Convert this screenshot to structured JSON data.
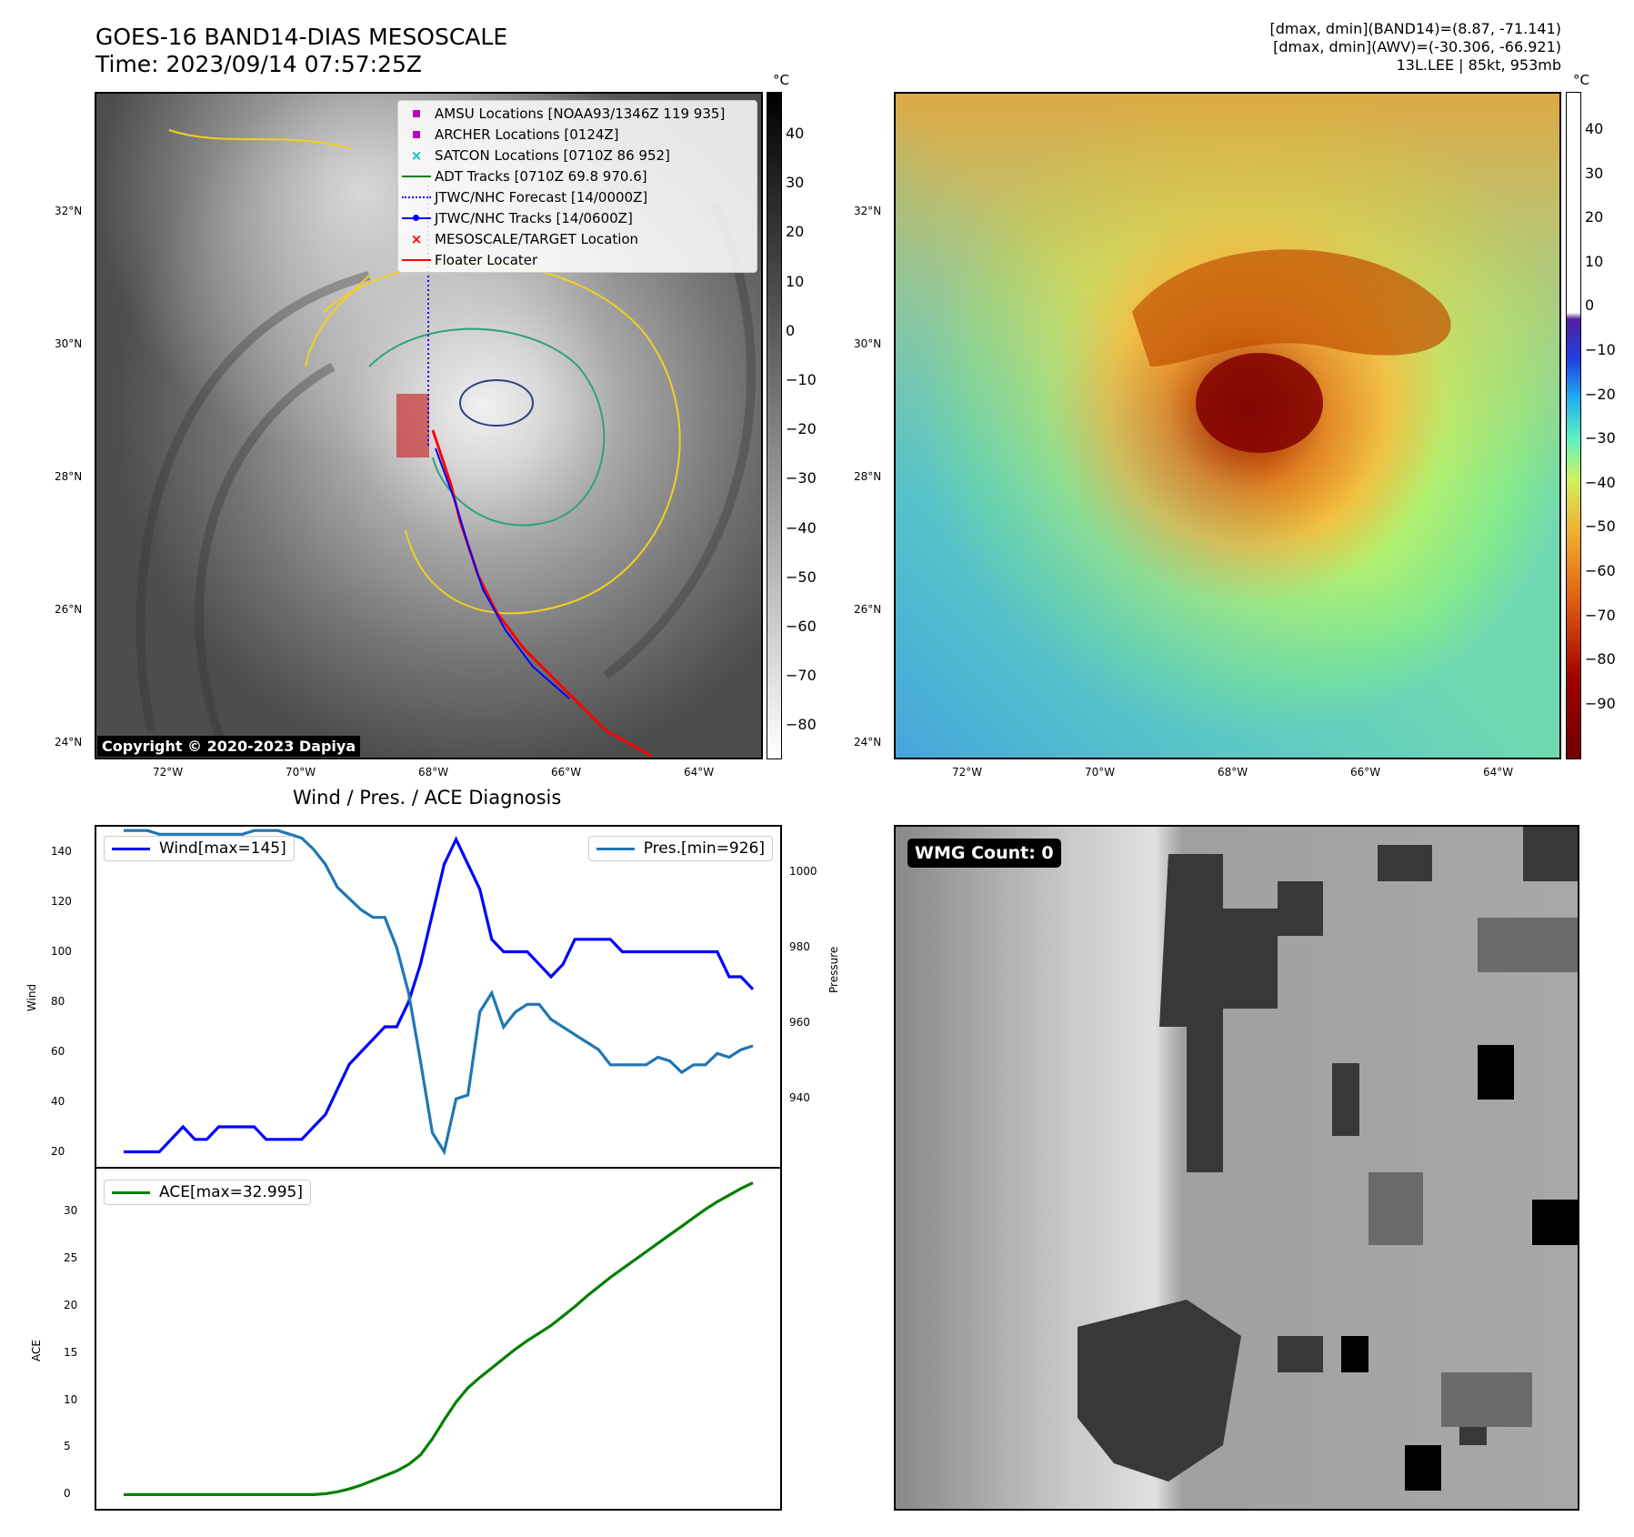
{
  "header": {
    "title_line1": "GOES-16 BAND14-DIAS MESOSCALE",
    "title_line2": "Time: 2023/09/14 07:57:25Z",
    "info_line1": "[dmax, dmin](BAND14)=(8.87, -71.141)",
    "info_line2": "[dmax, dmin](AWV)=(-30.306, -66.921)",
    "info_line3": "13L.LEE | 85kt, 953mb"
  },
  "map_axes": {
    "lat_labels": [
      "32°N",
      "30°N",
      "28°N",
      "26°N",
      "24°N"
    ],
    "lon_labels": [
      "72°W",
      "70°W",
      "68°W",
      "66°W",
      "64°W"
    ]
  },
  "ir_panel": {
    "copyright": "Copyright © 2020-2023 Dapiya",
    "colorbar_unit": "°C",
    "colorbar_ticks": [
      "40",
      "30",
      "20",
      "10",
      "0",
      "−10",
      "−20",
      "−30",
      "−40",
      "−50",
      "−60",
      "−70",
      "−80"
    ],
    "legend": [
      {
        "label": "AMSU Locations [NOAA93/1346Z 119 935]",
        "symbol": "square",
        "color": "#c000c0"
      },
      {
        "label": "ARCHER Locations [0124Z]",
        "symbol": "square",
        "color": "#c000c0"
      },
      {
        "label": "SATCON Locations [0710Z 86 952]",
        "symbol": "x",
        "color": "#00c0c0"
      },
      {
        "label": "ADT Tracks [0710Z 69.8 970.6]",
        "symbol": "line",
        "color": "#008000"
      },
      {
        "label": "JTWC/NHC Forecast [14/0000Z]",
        "symbol": "dotted",
        "color": "#0000ff"
      },
      {
        "label": "JTWC/NHC Tracks [14/0600Z]",
        "symbol": "line-dot",
        "color": "#0000ff"
      },
      {
        "label": "MESOSCALE/TARGET Location",
        "symbol": "x",
        "color": "#ff0000"
      },
      {
        "label": "Floater Locater",
        "symbol": "line",
        "color": "#ff0000"
      }
    ]
  },
  "color_panel": {
    "colorbar_unit": "°C",
    "colorbar_ticks": [
      "40",
      "30",
      "20",
      "10",
      "0",
      "−10",
      "−20",
      "−30",
      "−40",
      "−50",
      "−60",
      "−70",
      "−80",
      "−90"
    ]
  },
  "wmg_panel": {
    "badge": "WMG Count: 0"
  },
  "chart_data": [
    {
      "type": "line",
      "title": "Wind / Pres. / ACE Diagnosis",
      "ylabel": "Wind",
      "y2label": "Pressure",
      "ylim": [
        14,
        150
      ],
      "y2lim": [
        922,
        1012
      ],
      "yticks": [
        20,
        40,
        60,
        80,
        100,
        120,
        140
      ],
      "y2ticks": [
        940,
        960,
        980,
        1000
      ],
      "series": [
        {
          "name": "Wind[max=145]",
          "color": "#0000ff",
          "values": [
            20,
            20,
            20,
            20,
            25,
            30,
            25,
            25,
            30,
            30,
            30,
            30,
            25,
            25,
            25,
            25,
            30,
            35,
            45,
            55,
            60,
            65,
            70,
            70,
            80,
            95,
            115,
            135,
            145,
            135,
            125,
            105,
            100,
            100,
            100,
            95,
            90,
            95,
            105,
            105,
            105,
            105,
            100,
            100,
            100,
            100,
            100,
            100,
            100,
            100,
            100,
            90,
            90,
            85
          ]
        },
        {
          "name": "Pres.[min=926]",
          "color": "#1f77b4",
          "axis": "right",
          "values": [
            1011,
            1011,
            1011,
            1010,
            1010,
            1010,
            1010,
            1010,
            1010,
            1010,
            1010,
            1011,
            1011,
            1011,
            1010,
            1009,
            1006,
            1002,
            996,
            993,
            990,
            988,
            988,
            980,
            968,
            950,
            931,
            926,
            940,
            941,
            963,
            968,
            959,
            963,
            965,
            965,
            961,
            959,
            957,
            955,
            953,
            949,
            949,
            949,
            949,
            951,
            950,
            947,
            949,
            949,
            952,
            951,
            953,
            954
          ]
        }
      ]
    },
    {
      "type": "line",
      "ylabel": "ACE",
      "ylim": [
        -1.5,
        34.5
      ],
      "yticks": [
        0,
        5,
        10,
        15,
        20,
        25,
        30
      ],
      "series": [
        {
          "name": "ACE[max=32.995]",
          "color": "#008000",
          "values": [
            0,
            0,
            0,
            0,
            0,
            0,
            0,
            0,
            0,
            0,
            0,
            0,
            0,
            0,
            0,
            0,
            0,
            0.1,
            0.3,
            0.6,
            1.0,
            1.5,
            2.0,
            2.5,
            3.2,
            4.2,
            5.9,
            7.9,
            9.8,
            11.3,
            12.4,
            13.4,
            14.4,
            15.4,
            16.3,
            17.1,
            17.9,
            18.9,
            19.9,
            21.0,
            22.0,
            23.0,
            23.9,
            24.8,
            25.7,
            26.6,
            27.5,
            28.4,
            29.3,
            30.2,
            31.0,
            31.7,
            32.4,
            33.0
          ]
        }
      ]
    }
  ]
}
